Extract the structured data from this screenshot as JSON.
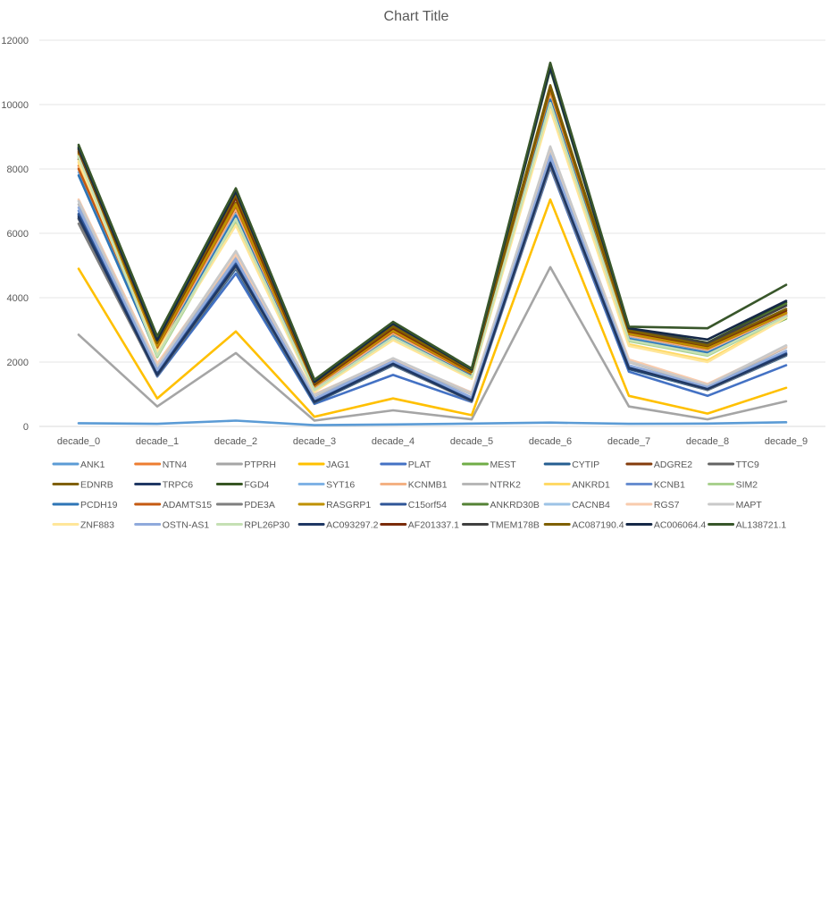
{
  "chart_data": {
    "type": "line",
    "title": "Chart Title",
    "xlabel": "",
    "ylabel": "",
    "ylim": [
      0,
      12000
    ],
    "yticks": [
      0,
      2000,
      4000,
      6000,
      8000,
      10000,
      12000
    ],
    "grid": true,
    "legend_position": "bottom",
    "categories": [
      "decade_0",
      "decade_1",
      "decade_2",
      "decade_3",
      "decade_4",
      "decade_5",
      "decade_6",
      "decade_7",
      "decade_8",
      "decade_9"
    ],
    "series": [
      {
        "name": "ANK1",
        "color": "#5B9BD5",
        "values": [
          100,
          80,
          180,
          40,
          60,
          90,
          120,
          80,
          90,
          130
        ]
      },
      {
        "name": "NTN4",
        "color": "#ED7D31",
        "values": [
          8100,
          2500,
          6800,
          1250,
          2950,
          1650,
          10400,
          2850,
          2400,
          3500
        ]
      },
      {
        "name": "PTPRH",
        "color": "#A5A5A5",
        "values": [
          2850,
          620,
          2280,
          180,
          500,
          220,
          4950,
          620,
          220,
          780
        ]
      },
      {
        "name": "JAG1",
        "color": "#FFC000",
        "values": [
          4900,
          870,
          2950,
          300,
          870,
          350,
          7050,
          950,
          400,
          1200
        ]
      },
      {
        "name": "PLAT",
        "color": "#4472C4",
        "values": [
          6450,
          1550,
          4750,
          700,
          1600,
          760,
          8050,
          1700,
          950,
          1900
        ]
      },
      {
        "name": "MEST",
        "color": "#70AD47",
        "values": [
          8400,
          2200,
          6500,
          1150,
          2850,
          1550,
          10100,
          2700,
          2250,
          3350
        ]
      },
      {
        "name": "CYTIP",
        "color": "#255E91",
        "values": [
          6600,
          1580,
          4900,
          730,
          1900,
          790,
          8200,
          1780,
          1130,
          2200
        ]
      },
      {
        "name": "ADGRE2",
        "color": "#843C0C",
        "values": [
          8300,
          2400,
          6700,
          1200,
          2900,
          1600,
          10300,
          2800,
          2350,
          3450
        ]
      },
      {
        "name": "TTC9",
        "color": "#636363",
        "values": [
          6450,
          1600,
          5000,
          780,
          1950,
          800,
          8150,
          1850,
          1150,
          2250
        ]
      },
      {
        "name": "EDNRB",
        "color": "#806000",
        "values": [
          8500,
          2550,
          6950,
          1280,
          3000,
          1680,
          10500,
          2900,
          2450,
          3550
        ]
      },
      {
        "name": "TRPC6",
        "color": "#203864",
        "values": [
          6550,
          1620,
          5050,
          760,
          1950,
          820,
          8250,
          1800,
          1180,
          2250
        ]
      },
      {
        "name": "FGD4",
        "color": "#375623",
        "values": [
          8700,
          2700,
          7350,
          1400,
          3200,
          1780,
          11200,
          3050,
          2600,
          3850
        ]
      },
      {
        "name": "SYT16",
        "color": "#7FB2E5",
        "values": [
          7900,
          2300,
          6600,
          1150,
          2800,
          1550,
          10200,
          2750,
          2300,
          3450
        ]
      },
      {
        "name": "KCNMB1",
        "color": "#F4B183",
        "values": [
          8050,
          2400,
          6750,
          1200,
          2900,
          1600,
          10350,
          2820,
          2380,
          3480
        ]
      },
      {
        "name": "NTRK2",
        "color": "#B7B7B7",
        "values": [
          6900,
          1850,
          5300,
          950,
          2050,
          1000,
          8550,
          2000,
          1250,
          2450
        ]
      },
      {
        "name": "ANKRD1",
        "color": "#FFD966",
        "values": [
          8200,
          2350,
          6300,
          1100,
          2700,
          1500,
          9900,
          2550,
          2050,
          3400
        ]
      },
      {
        "name": "KCNB1",
        "color": "#698ED0",
        "values": [
          6700,
          1700,
          5100,
          800,
          2000,
          850,
          8300,
          1850,
          1200,
          2300
        ]
      },
      {
        "name": "SIM2",
        "color": "#A9D18E",
        "values": [
          8350,
          2150,
          6400,
          1120,
          2750,
          1520,
          10000,
          2650,
          2200,
          3400
        ]
      },
      {
        "name": "PCDH19",
        "color": "#2E75B6",
        "values": [
          7800,
          2250,
          6550,
          1130,
          2780,
          1560,
          10150,
          2720,
          2280,
          3420
        ]
      },
      {
        "name": "ADAMTS15",
        "color": "#C55A11",
        "values": [
          8000,
          2450,
          6850,
          1250,
          2950,
          1640,
          10450,
          2870,
          2420,
          3520
        ]
      },
      {
        "name": "PDE3A",
        "color": "#7F7F7F",
        "values": [
          6300,
          1580,
          4950,
          750,
          1920,
          780,
          8100,
          1820,
          1140,
          2220
        ]
      },
      {
        "name": "RASGRP1",
        "color": "#BF9000",
        "values": [
          8450,
          2500,
          6900,
          1260,
          2980,
          1660,
          10480,
          2880,
          2430,
          3530
        ]
      },
      {
        "name": "C15orf54",
        "color": "#2F5597",
        "values": [
          6600,
          1650,
          5050,
          770,
          1960,
          810,
          8200,
          1830,
          1170,
          2260
        ]
      },
      {
        "name": "ANKRD30B",
        "color": "#548235",
        "values": [
          8600,
          2650,
          7250,
          1350,
          3150,
          1740,
          11100,
          3000,
          2550,
          3800
        ]
      },
      {
        "name": "CACNB4",
        "color": "#9DC3E6",
        "values": [
          7000,
          1900,
          5400,
          980,
          2100,
          1050,
          8600,
          2050,
          1300,
          2500
        ]
      },
      {
        "name": "RGS7",
        "color": "#F8CBAD",
        "values": [
          7050,
          1950,
          5350,
          1000,
          2080,
          1050,
          8650,
          2080,
          1320,
          2480
        ]
      },
      {
        "name": "MAPT",
        "color": "#C9C9C9",
        "values": [
          7000,
          1850,
          5450,
          970,
          2120,
          1020,
          8700,
          2020,
          1280,
          2520
        ]
      },
      {
        "name": "ZNF883",
        "color": "#FFE699",
        "values": [
          8250,
          2300,
          6250,
          1080,
          2680,
          1480,
          9850,
          2500,
          2000,
          3380
        ]
      },
      {
        "name": "OSTN-AS1",
        "color": "#8FAADC",
        "values": [
          6800,
          1750,
          5200,
          860,
          2030,
          900,
          8400,
          1900,
          1220,
          2350
        ]
      },
      {
        "name": "RPL26P30",
        "color": "#C5E0B4",
        "values": [
          8400,
          2200,
          6450,
          1130,
          2760,
          1530,
          10050,
          2680,
          2230,
          3420
        ]
      },
      {
        "name": "AC093297.2",
        "color": "#1F3864",
        "values": [
          6500,
          1600,
          5000,
          760,
          1940,
          800,
          8180,
          1820,
          1160,
          2240
        ]
      },
      {
        "name": "AF201337.1",
        "color": "#7B2C0A",
        "values": [
          8550,
          2600,
          7100,
          1300,
          3050,
          1700,
          10550,
          2950,
          2500,
          3600
        ]
      },
      {
        "name": "TMEM178B",
        "color": "#404040",
        "values": [
          8650,
          2700,
          7300,
          1380,
          3180,
          1760,
          11150,
          3020,
          2580,
          3750
        ]
      },
      {
        "name": "AC087190.4",
        "color": "#7F6000",
        "values": [
          8600,
          2620,
          7200,
          1340,
          3100,
          1720,
          10600,
          2980,
          2520,
          3650
        ]
      },
      {
        "name": "AC006064.4",
        "color": "#152847",
        "values": [
          8650,
          2680,
          7300,
          1380,
          3200,
          1770,
          11150,
          3050,
          2700,
          3900
        ]
      },
      {
        "name": "AL138721.1",
        "color": "#38562A",
        "values": [
          8750,
          2800,
          7400,
          1450,
          3250,
          1800,
          11300,
          3100,
          3050,
          4400
        ]
      }
    ]
  }
}
